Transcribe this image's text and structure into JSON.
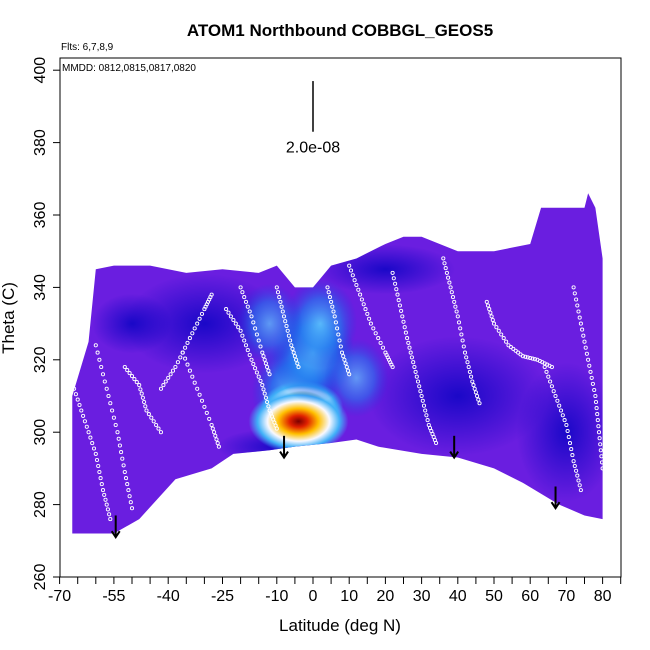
{
  "chart_data": {
    "type": "heatmap",
    "title": "ATOM1 Northbound COBBGL_GEOS5",
    "subtitle_flights": "Flts: 6,7,8,9",
    "subtitle_dates": "MMDD: 0812,0815,0817,0820",
    "xlabel": "Latitude (deg N)",
    "ylabel": "Theta (C)",
    "xlim": [
      -70,
      85
    ],
    "ylim": [
      260,
      400
    ],
    "x_ticks": [
      "-70",
      "-55",
      "-40",
      "-25",
      "-10",
      "0",
      "10",
      "20",
      "30",
      "40",
      "50",
      "60",
      "70",
      "80"
    ],
    "y_ticks": [
      "260",
      "280",
      "300",
      "320",
      "340",
      "360",
      "380",
      "400"
    ],
    "scale_label": "2.0e-08",
    "scale_bar": {
      "x": 0,
      "y_bottom": 383,
      "y_top": 397
    },
    "ground_profile": [
      [
        -66.5,
        272
      ],
      [
        -55,
        272
      ],
      [
        -48,
        276
      ],
      [
        -38,
        287
      ],
      [
        -28,
        290
      ],
      [
        -22,
        294
      ],
      [
        -12,
        295
      ],
      [
        -5,
        296
      ],
      [
        5,
        297
      ],
      [
        12,
        298
      ],
      [
        18,
        296
      ],
      [
        30,
        294
      ],
      [
        40,
        293
      ],
      [
        50,
        290
      ],
      [
        58,
        286
      ],
      [
        68,
        280
      ],
      [
        75,
        277
      ],
      [
        80,
        276
      ]
    ],
    "top_profile": [
      [
        -66.5,
        310
      ],
      [
        -62,
        325
      ],
      [
        -60,
        345
      ],
      [
        -55,
        346
      ],
      [
        -45,
        346
      ],
      [
        -35,
        344
      ],
      [
        -25,
        345
      ],
      [
        -15,
        344
      ],
      [
        -10,
        346
      ],
      [
        -5,
        340
      ],
      [
        0,
        340
      ],
      [
        5,
        346
      ],
      [
        12,
        348
      ],
      [
        20,
        352
      ],
      [
        25,
        354
      ],
      [
        30,
        354
      ],
      [
        40,
        350
      ],
      [
        50,
        350
      ],
      [
        60,
        352
      ],
      [
        63,
        362
      ],
      [
        75,
        362
      ],
      [
        76,
        366
      ],
      [
        78,
        362
      ],
      [
        80,
        348
      ]
    ],
    "hot_spots": [
      {
        "lat": -5,
        "theta": 311,
        "intensity": 0.45
      },
      {
        "lat": -3,
        "theta": 307,
        "intensity": 0.7
      },
      {
        "lat": -4,
        "theta": 303,
        "intensity": 1.0
      },
      {
        "lat": 0,
        "theta": 322,
        "intensity": 0.4
      },
      {
        "lat": 2,
        "theta": 330,
        "intensity": 0.3
      },
      {
        "lat": -12,
        "theta": 330,
        "intensity": 0.2
      },
      {
        "lat": 12,
        "theta": 315,
        "intensity": 0.18
      }
    ],
    "flight_tracks": [
      [
        [
          -66,
          312
        ],
        [
          -63,
          303
        ],
        [
          -60,
          294
        ],
        [
          -58,
          284
        ],
        [
          -56,
          276
        ]
      ],
      [
        [
          -60,
          324
        ],
        [
          -57,
          312
        ],
        [
          -54,
          300
        ],
        [
          -52,
          289
        ],
        [
          -50,
          279
        ]
      ],
      [
        [
          -52,
          318
        ],
        [
          -48,
          313
        ],
        [
          -46,
          306
        ],
        [
          -42,
          300
        ]
      ],
      [
        [
          -42,
          312
        ],
        [
          -38,
          318
        ],
        [
          -34,
          326
        ],
        [
          -30,
          334
        ],
        [
          -28,
          338
        ]
      ],
      [
        [
          -36,
          322
        ],
        [
          -32,
          312
        ],
        [
          -28,
          302
        ],
        [
          -26,
          296
        ]
      ],
      [
        [
          -24,
          334
        ],
        [
          -20,
          328
        ],
        [
          -17,
          320
        ],
        [
          -14,
          313
        ],
        [
          -12,
          306
        ],
        [
          -10,
          301
        ]
      ],
      [
        [
          -20,
          340
        ],
        [
          -17,
          332
        ],
        [
          -14,
          322
        ],
        [
          -12,
          316
        ]
      ],
      [
        [
          -10,
          340
        ],
        [
          -8,
          332
        ],
        [
          -6,
          324
        ],
        [
          -4,
          318
        ]
      ],
      [
        [
          4,
          340
        ],
        [
          6,
          332
        ],
        [
          8,
          322
        ],
        [
          10,
          316
        ]
      ],
      [
        [
          10,
          346
        ],
        [
          13,
          338
        ],
        [
          16,
          330
        ],
        [
          20,
          322
        ],
        [
          22,
          318
        ]
      ],
      [
        [
          22,
          344
        ],
        [
          24,
          335
        ],
        [
          26,
          326
        ],
        [
          28,
          318
        ],
        [
          30,
          310
        ],
        [
          32,
          302
        ],
        [
          34,
          297
        ]
      ],
      [
        [
          36,
          348
        ],
        [
          38,
          340
        ],
        [
          40,
          332
        ],
        [
          42,
          322
        ],
        [
          44,
          314
        ],
        [
          46,
          308
        ]
      ],
      [
        [
          48,
          336
        ],
        [
          50,
          330
        ],
        [
          54,
          324
        ],
        [
          58,
          321
        ],
        [
          62,
          320
        ],
        [
          66,
          318
        ]
      ],
      [
        [
          64,
          318
        ],
        [
          67,
          310
        ],
        [
          70,
          302
        ],
        [
          72,
          292
        ],
        [
          74,
          284
        ]
      ],
      [
        [
          72,
          340
        ],
        [
          74,
          330
        ],
        [
          76,
          320
        ],
        [
          78,
          310
        ],
        [
          79,
          300
        ],
        [
          80,
          290
        ]
      ]
    ],
    "arrows": [
      {
        "lat": -54.5,
        "theta_from": 277,
        "theta_to": 271
      },
      {
        "lat": -8,
        "theta_from": 299,
        "theta_to": 293
      },
      {
        "lat": 39,
        "theta_from": 299,
        "theta_to": 293
      },
      {
        "lat": 67,
        "theta_from": 285,
        "theta_to": 279
      }
    ]
  }
}
